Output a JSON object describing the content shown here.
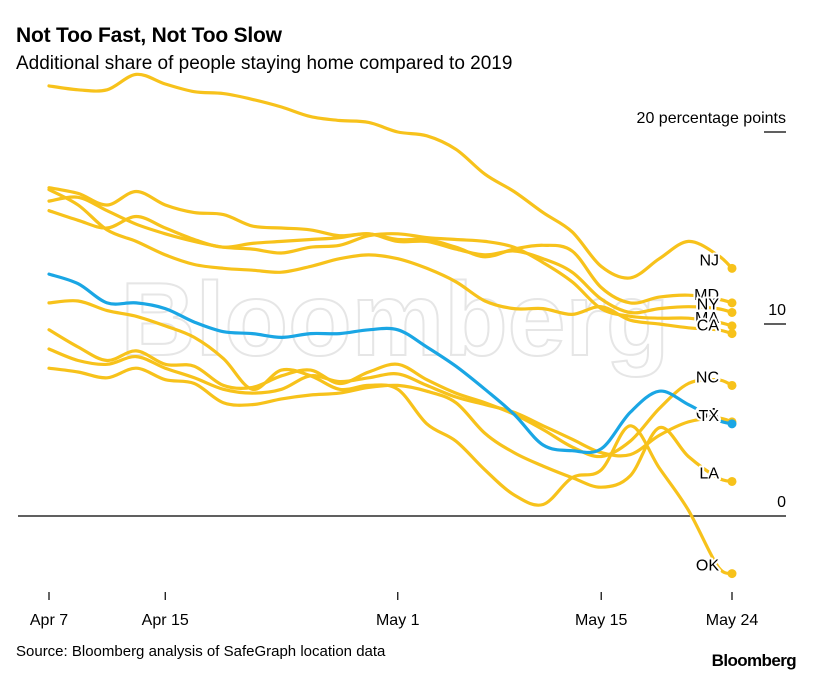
{
  "title": "Not Too Fast, Not Too Slow",
  "subtitle": "Additional share of people staying home compared to 2019",
  "source": "Source: Bloomberg analysis of SafeGraph location data",
  "brand": "Bloomberg",
  "watermark": "Bloomberg",
  "colors": {
    "default": "#f7c21b",
    "highlight": "#1aa6e4",
    "axis": "#000000"
  },
  "chart_data": {
    "type": "line",
    "title": "Not Too Fast, Not Too Slow",
    "ylabel": "Additional share of people staying home compared to 2019 (percentage points)",
    "xlabel": "",
    "ylim": [
      -3.2,
      20
    ],
    "y_ticks": [
      {
        "value": 20,
        "label": "20 percentage points"
      },
      {
        "value": 10,
        "label": "10"
      },
      {
        "value": 0,
        "label": "0"
      }
    ],
    "x_ticks": [
      {
        "day": 0,
        "label": "Apr 7"
      },
      {
        "day": 8,
        "label": "Apr 15"
      },
      {
        "day": 24,
        "label": "May 1"
      },
      {
        "day": 38,
        "label": "May 15"
      },
      {
        "day": 47,
        "label": "May 24"
      }
    ],
    "x": [
      0,
      2,
      4,
      6,
      8,
      10,
      12,
      14,
      16,
      18,
      20,
      22,
      24,
      26,
      28,
      30,
      32,
      34,
      36,
      38,
      40,
      42,
      44,
      46,
      47
    ],
    "series": [
      {
        "name": "NJ",
        "highlight": false,
        "values": [
          22.4,
          22.2,
          22.2,
          23.0,
          22.5,
          22.1,
          22.0,
          21.7,
          21.3,
          20.8,
          20.6,
          20.5,
          20.0,
          19.8,
          19.1,
          17.8,
          16.9,
          15.8,
          14.8,
          13.0,
          12.4,
          13.4,
          14.3,
          13.6,
          12.9
        ]
      },
      {
        "name": "MD",
        "highlight": false,
        "values": [
          17.1,
          16.8,
          16.2,
          16.9,
          16.2,
          15.8,
          15.7,
          15.1,
          15.0,
          14.9,
          14.6,
          14.7,
          14.4,
          14.4,
          14.0,
          13.5,
          13.9,
          14.1,
          13.8,
          11.9,
          11.1,
          11.4,
          11.5,
          11.3,
          11.1
        ]
      },
      {
        "name": "NY",
        "highlight": false,
        "values": [
          15.9,
          15.4,
          15.0,
          15.6,
          15.0,
          14.4,
          14.0,
          14.2,
          14.3,
          14.4,
          14.5,
          14.7,
          14.3,
          14.3,
          13.9,
          13.6,
          13.8,
          13.4,
          12.7,
          11.3,
          10.6,
          10.8,
          10.9,
          10.8,
          10.6
        ]
      },
      {
        "name": "MA",
        "highlight": false,
        "values": [
          16.4,
          16.6,
          15.9,
          15.2,
          14.7,
          14.3,
          14.0,
          13.9,
          13.7,
          14.0,
          14.1,
          14.6,
          14.7,
          14.5,
          14.4,
          14.3,
          14.0,
          13.2,
          12.2,
          10.8,
          10.4,
          10.3,
          10.3,
          10.1,
          9.9
        ]
      },
      {
        "name": "CA",
        "highlight": false,
        "values": [
          17.0,
          16.2,
          14.9,
          14.3,
          13.6,
          13.1,
          12.9,
          12.8,
          12.7,
          13.0,
          13.4,
          13.6,
          13.4,
          12.9,
          12.2,
          11.2,
          10.8,
          10.8,
          10.5,
          10.9,
          10.2,
          10.0,
          9.8,
          9.7,
          9.5
        ]
      },
      {
        "name": "NC",
        "highlight": false,
        "values": [
          9.7,
          8.8,
          8.1,
          8.6,
          7.9,
          7.8,
          6.8,
          6.7,
          7.3,
          7.6,
          6.9,
          7.5,
          7.9,
          7.1,
          6.4,
          5.9,
          5.3,
          4.5,
          3.6,
          3.1,
          3.9,
          5.6,
          6.9,
          7.1,
          6.8
        ]
      },
      {
        "name": "GA",
        "highlight": false,
        "values": [
          8.7,
          8.1,
          7.9,
          8.3,
          7.7,
          7.2,
          6.6,
          6.4,
          6.6,
          7.3,
          7.0,
          7.2,
          7.4,
          6.8,
          6.2,
          5.8,
          5.4,
          4.7,
          4.0,
          3.3,
          3.2,
          4.2,
          4.9,
          5.1,
          4.9
        ]
      },
      {
        "name": "TX",
        "highlight": true,
        "values": [
          12.6,
          12.1,
          11.1,
          11.1,
          10.8,
          10.1,
          9.6,
          9.5,
          9.3,
          9.5,
          9.5,
          9.7,
          9.7,
          8.8,
          7.8,
          6.6,
          5.3,
          3.7,
          3.4,
          3.5,
          5.4,
          6.5,
          5.8,
          5.0,
          4.8
        ]
      },
      {
        "name": "LA",
        "highlight": false,
        "values": [
          7.7,
          7.5,
          7.2,
          7.7,
          7.1,
          6.9,
          5.9,
          5.8,
          6.1,
          6.3,
          6.4,
          6.7,
          6.8,
          6.5,
          5.9,
          4.3,
          3.3,
          2.6,
          2.0,
          1.5,
          2.1,
          4.6,
          3.1,
          2.0,
          1.8
        ]
      },
      {
        "name": "OK",
        "highlight": false,
        "values": [
          11.1,
          11.2,
          10.7,
          10.4,
          9.9,
          9.3,
          8.2,
          6.6,
          7.6,
          7.3,
          6.6,
          6.8,
          6.6,
          4.8,
          3.9,
          2.4,
          1.1,
          0.6,
          2.0,
          2.4,
          4.7,
          2.5,
          0.3,
          -2.6,
          -3.0
        ]
      }
    ]
  }
}
